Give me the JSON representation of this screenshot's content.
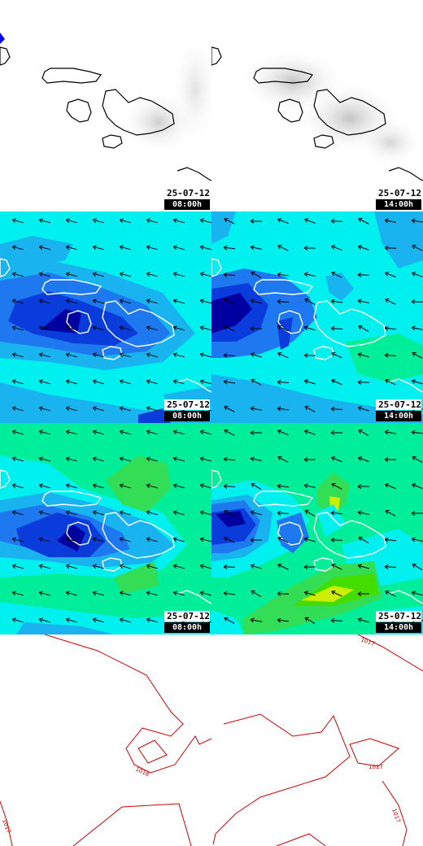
{
  "panels": [
    {
      "id": "cloud-0800",
      "variable": "cloud",
      "date": "25-07-12",
      "time": "08:00h"
    },
    {
      "id": "cloud-1400",
      "variable": "cloud",
      "date": "25-07-12",
      "time": "14:00h"
    },
    {
      "id": "wind-0800",
      "variable": "wind",
      "date": "25-07-12",
      "time": "08:00h"
    },
    {
      "id": "wind-1400",
      "variable": "wind",
      "date": "25-07-12",
      "time": "14:00h"
    },
    {
      "id": "gust-0800",
      "variable": "gust",
      "date": "25-07-12",
      "time": "08:00h"
    },
    {
      "id": "gust-1400",
      "variable": "gust",
      "date": "25-07-12",
      "time": "14:00h"
    }
  ],
  "pressure": {
    "labels": [
      "1017",
      "1018",
      "1017",
      "1017",
      "1017"
    ]
  },
  "colors": {
    "isobar": "#cc0000",
    "coastline_dark": "#000000",
    "coastline_light": "#ffffff",
    "wind_speed_levels": [
      "#0000a0",
      "#0a3cdc",
      "#1e78f0",
      "#19b4f0",
      "#00f0f0",
      "#00ee99",
      "#33dd55",
      "#44dd00",
      "#ccee00"
    ]
  }
}
